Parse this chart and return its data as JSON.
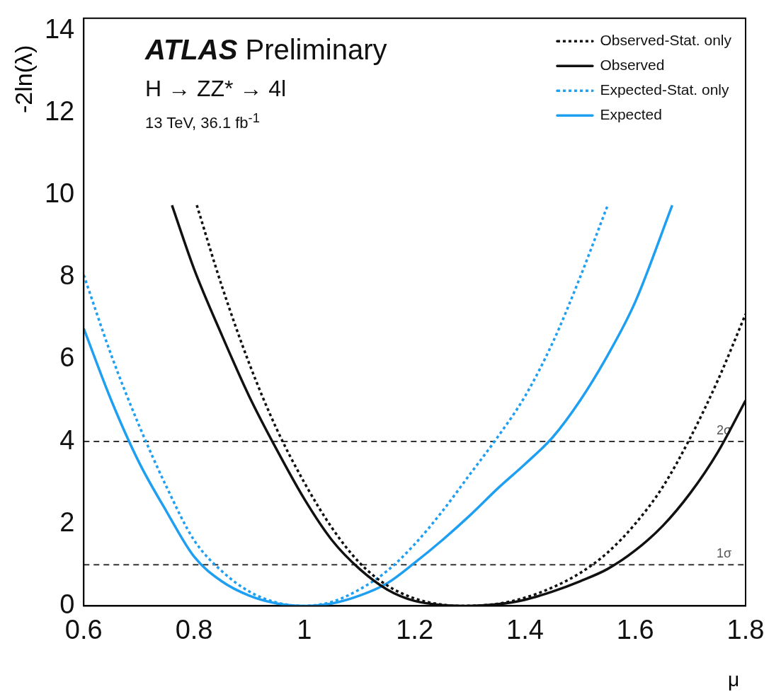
{
  "chart_data": {
    "type": "line",
    "xlabel": "μ",
    "ylabel": "-2ln(λ)",
    "annotations": [
      "ATLAS Preliminary",
      "H → ZZ* → 4l",
      "13 TeV, 36.1 fb$^{-1}$"
    ],
    "xlim": [
      0.6,
      1.8
    ],
    "xticks": [
      0.6,
      0.8,
      1,
      1.2,
      1.4,
      1.6,
      1.8
    ],
    "ylim": [
      0,
      14.3
    ],
    "yticks": [
      0,
      2,
      4,
      6,
      8,
      10,
      12,
      14
    ],
    "grid": false,
    "legend": "top right",
    "marker": "none",
    "ref_lines": [
      {
        "axis": "y",
        "value": 4,
        "label": "2σ",
        "color": "#333333",
        "line_style": "dashed"
      },
      {
        "axis": "y",
        "value": 1,
        "label": "1σ",
        "color": "#333333",
        "line_style": "dashed"
      }
    ],
    "series": [
      {
        "name": "Observed-Stat. only",
        "color": "#111111",
        "line_style": "dotted",
        "x": [
          0.805,
          0.85,
          0.9,
          0.95,
          1.0,
          1.05,
          1.1,
          1.15,
          1.2,
          1.25,
          1.28,
          1.35,
          1.4,
          1.45,
          1.5,
          1.55,
          1.6,
          1.65,
          1.7,
          1.75,
          1.8
        ],
        "values": [
          9.75,
          7.8,
          5.9,
          4.3,
          3.0,
          1.9,
          1.05,
          0.5,
          0.18,
          0.03,
          0,
          0.05,
          0.2,
          0.45,
          0.8,
          1.3,
          2.0,
          2.9,
          4.1,
          5.5,
          7.1
        ]
      },
      {
        "name": "Observed",
        "color": "#111111",
        "line_style": "solid",
        "x": [
          0.76,
          0.8,
          0.85,
          0.9,
          0.95,
          1.0,
          1.05,
          1.1,
          1.15,
          1.2,
          1.25,
          1.29,
          1.35,
          1.4,
          1.45,
          1.5,
          1.55,
          1.6,
          1.65,
          1.7,
          1.75,
          1.8
        ],
        "values": [
          9.75,
          8.2,
          6.6,
          5.1,
          3.8,
          2.6,
          1.6,
          0.9,
          0.4,
          0.12,
          0.02,
          0,
          0.04,
          0.15,
          0.35,
          0.6,
          0.9,
          1.35,
          1.95,
          2.75,
          3.75,
          5.0
        ]
      },
      {
        "name": "Expected-Stat. only",
        "color": "#1e9ff2",
        "line_style": "dotted",
        "x": [
          0.6,
          0.65,
          0.7,
          0.75,
          0.8,
          0.85,
          0.9,
          0.95,
          1.0,
          1.05,
          1.1,
          1.15,
          1.2,
          1.25,
          1.3,
          1.35,
          1.4,
          1.45,
          1.5,
          1.55
        ],
        "values": [
          8.05,
          6.1,
          4.4,
          2.9,
          1.6,
          0.85,
          0.35,
          0.08,
          0,
          0.1,
          0.4,
          0.85,
          1.5,
          2.3,
          3.2,
          4.1,
          5.1,
          6.4,
          8.0,
          9.75
        ]
      },
      {
        "name": "Expected",
        "color": "#1e9ff2",
        "line_style": "solid",
        "x": [
          0.6,
          0.65,
          0.7,
          0.75,
          0.8,
          0.85,
          0.9,
          0.95,
          1.0,
          1.05,
          1.1,
          1.15,
          1.2,
          1.25,
          1.3,
          1.35,
          1.4,
          1.45,
          1.5,
          1.55,
          1.6,
          1.667
        ],
        "values": [
          6.75,
          5.0,
          3.5,
          2.3,
          1.2,
          0.6,
          0.25,
          0.06,
          0,
          0.06,
          0.25,
          0.55,
          1.05,
          1.6,
          2.2,
          2.85,
          3.45,
          4.1,
          5.0,
          6.1,
          7.4,
          9.75
        ]
      }
    ]
  }
}
